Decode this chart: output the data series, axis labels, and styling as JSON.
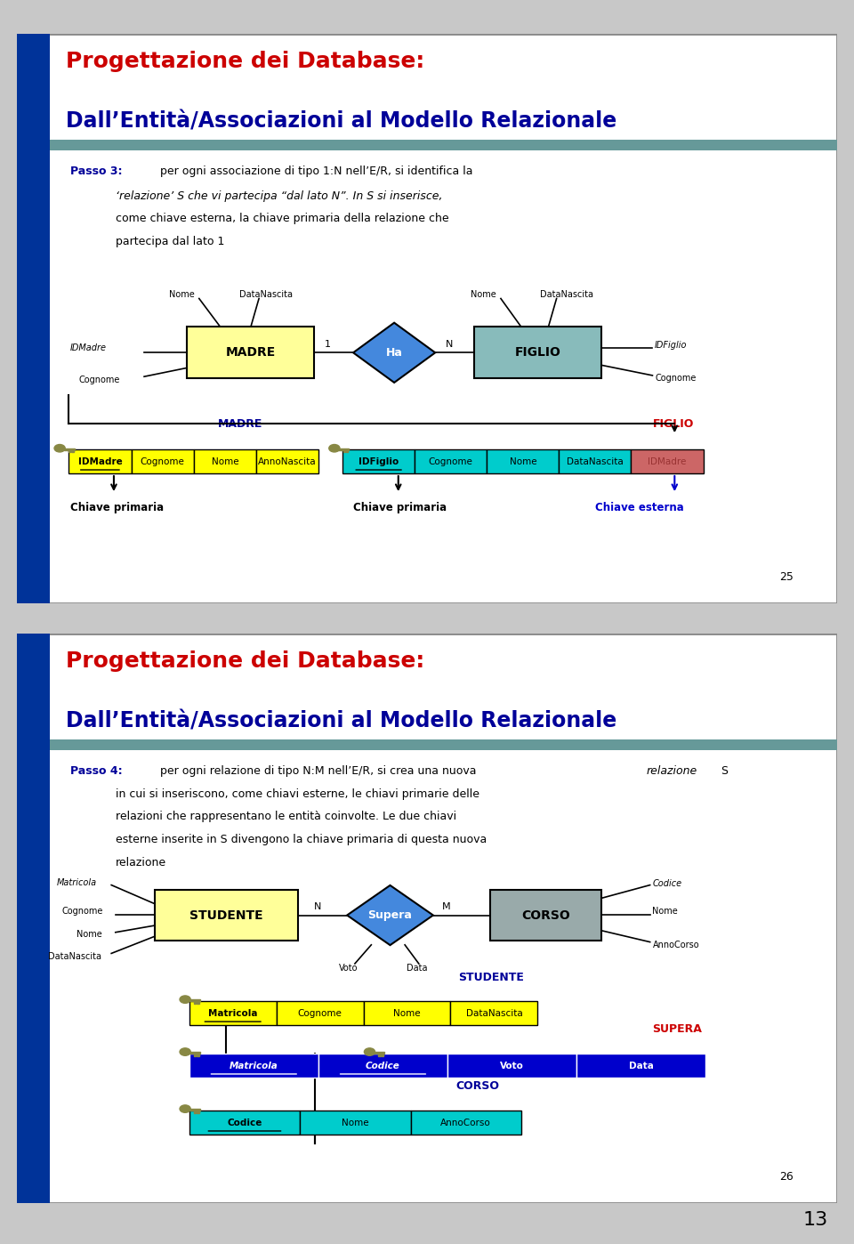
{
  "slide1": {
    "title_line1": "Progettazione dei Database:",
    "title_line2": "Dall’Entità/Associazioni al Modello Relazionale",
    "passo_label": "Passo 3:",
    "page_num": "25"
  },
  "slide2": {
    "title_line1": "Progettazione dei Database:",
    "title_line2": "Dall’Entità/Associazioni al Modello Relazionale",
    "passo_label": "Passo 4:",
    "page_num": "26"
  },
  "colors": {
    "title_red": "#CC0000",
    "title_blue": "#000099",
    "left_bar": "#003399",
    "teal_bar": "#669999",
    "yellow": "#FFFF00",
    "cyan": "#00CCCC",
    "dark_blue": "#0000CC",
    "red_cell": "#CC6666",
    "outer_bg": "#C8C8C8",
    "slide_bg": "#FFFFFF",
    "slide_border": "#888888",
    "entity_yellow": "#FFFF99",
    "entity_teal": "#88BBBB",
    "entity_gray": "#99AAAA",
    "diamond_blue": "#4488DD",
    "key_color": "#888844",
    "anno_blue": "#000099",
    "anno_red": "#CC0000",
    "chiave_ext_blue": "#0000CC"
  }
}
